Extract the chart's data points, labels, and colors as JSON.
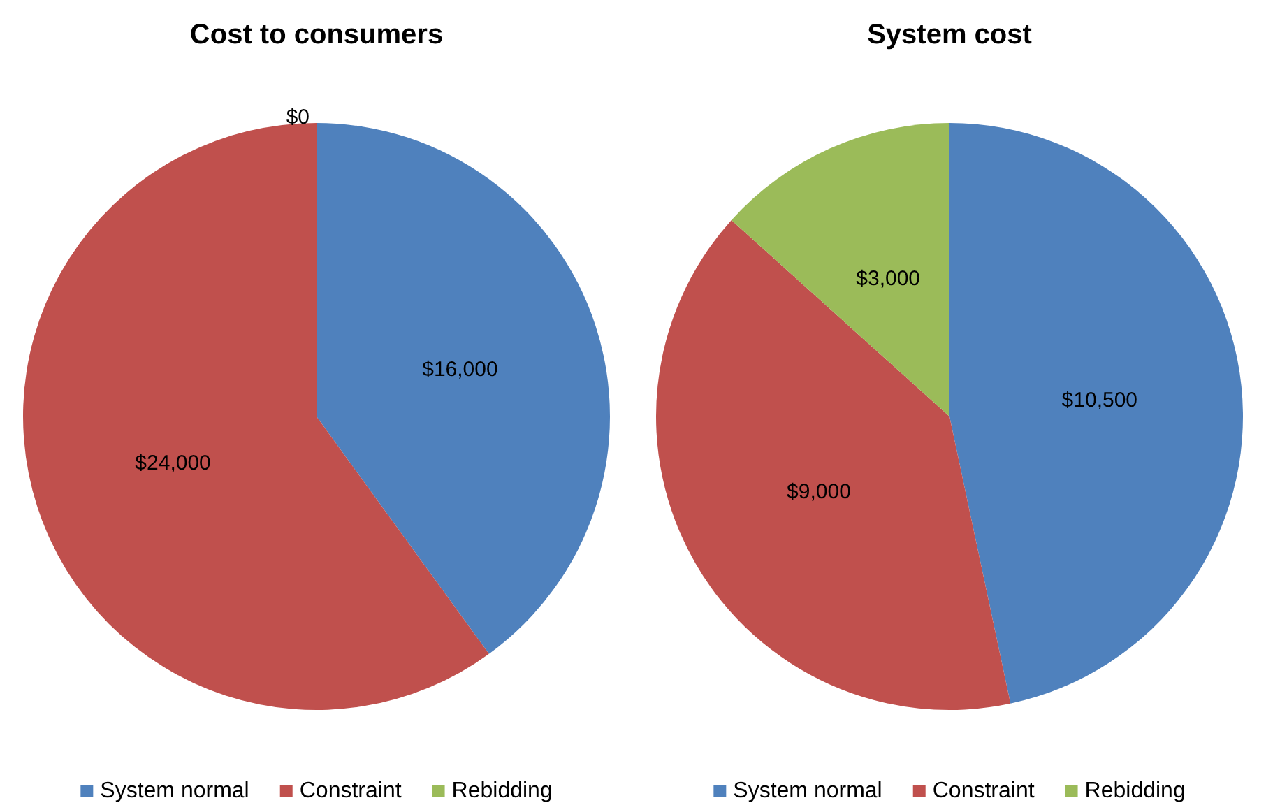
{
  "chart_data": [
    {
      "type": "pie",
      "title": "Cost to consumers",
      "categories": [
        "System normal",
        "Constraint",
        "Rebidding"
      ],
      "values": [
        16000,
        24000,
        0
      ],
      "colors": [
        "#4f81bd",
        "#c0504d",
        "#9bbb59"
      ],
      "value_labels": [
        "$16,000",
        "$24,000",
        "$0"
      ],
      "legend": "bottom"
    },
    {
      "type": "pie",
      "title": "System cost",
      "categories": [
        "System normal",
        "Constraint",
        "Rebidding"
      ],
      "values": [
        10500,
        9000,
        3000
      ],
      "colors": [
        "#4f81bd",
        "#c0504d",
        "#9bbb59"
      ],
      "value_labels": [
        "$10,500",
        "$9,000",
        "$3,000"
      ],
      "legend": "bottom"
    }
  ]
}
